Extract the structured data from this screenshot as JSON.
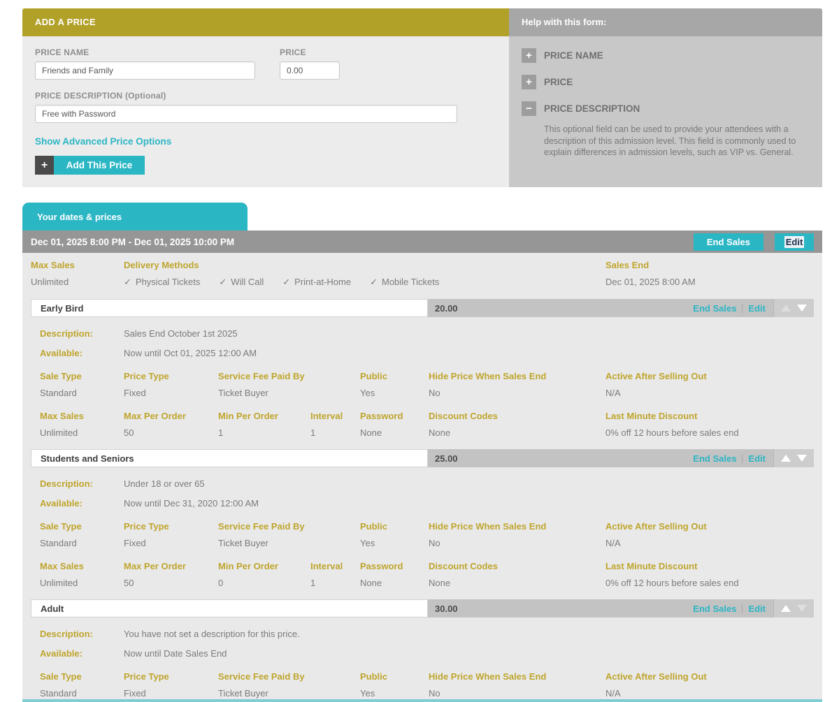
{
  "colors": {
    "accent_teal": "#2bb6c4",
    "accent_gold": "#b2a128",
    "label_gold": "#bfa52d"
  },
  "add_price": {
    "title": "ADD A PRICE",
    "price_name_label": "PRICE NAME",
    "price_name_value": "Friends and Family",
    "price_label": "PRICE",
    "price_value": "0.00",
    "description_label": "PRICE DESCRIPTION (Optional)",
    "description_value": "Free with Password",
    "advanced_link": "Show Advanced Price Options",
    "add_button": "Add This Price",
    "plus_glyph": "+"
  },
  "help": {
    "title": "Help with this form:",
    "items": [
      {
        "label": "PRICE NAME",
        "icon": "+"
      },
      {
        "label": "PRICE",
        "icon": "+"
      },
      {
        "label": "PRICE DESCRIPTION",
        "icon": "−",
        "body": "This optional field can be used to provide your attendees with a description of this admission level. This field is commonly used to explain differences in admission levels, such as VIP vs. General."
      }
    ]
  },
  "dates": {
    "tab_label": "Your dates & prices",
    "date_range": "Dec 01, 2025 8:00 PM - Dec 01, 2025 10:00 PM",
    "end_sales_button": "End Sales",
    "edit_button": "Edit",
    "max_sales_label": "Max Sales",
    "max_sales_value": "Unlimited",
    "delivery_label": "Delivery Methods",
    "check_glyph": "✓",
    "delivery_methods": [
      "Physical Tickets",
      "Will Call",
      "Print-at-Home",
      "Mobile Tickets"
    ],
    "sales_end_label": "Sales End",
    "sales_end_value": "Dec 01, 2025 8:00 AM"
  },
  "labels": {
    "description": "Description:",
    "available": "Available:",
    "sale_type": "Sale Type",
    "price_type": "Price Type",
    "service_fee": "Service Fee Paid By",
    "public": "Public",
    "hide_price": "Hide Price When Sales End",
    "active_after": "Active After Selling Out",
    "max_sales": "Max Sales",
    "max_per_order": "Max Per Order",
    "min_per_order": "Min Per Order",
    "interval": "Interval",
    "password": "Password",
    "discount_codes": "Discount Codes",
    "last_minute": "Last Minute Discount",
    "end_sales": "End Sales",
    "edit": "Edit"
  },
  "prices": [
    {
      "name": "Early Bird",
      "amount": "20.00",
      "description": "Sales End October 1st 2025",
      "available": "Now until Oct 01, 2025 12:00 AM",
      "sale_type": "Standard",
      "price_type": "Fixed",
      "service_fee": "Ticket Buyer",
      "public": "Yes",
      "hide_price": "No",
      "active_after": "N/A",
      "max_sales": "Unlimited",
      "max_per_order": "50",
      "min_per_order": "1",
      "interval": "1",
      "password": "None",
      "discount_codes": "None",
      "last_minute": "0% off 12 hours before sales end"
    },
    {
      "name": "Students and Seniors",
      "amount": "25.00",
      "description": "Under 18 or over 65",
      "available": "Now until Dec 31, 2020 12:00 AM",
      "sale_type": "Standard",
      "price_type": "Fixed",
      "service_fee": "Ticket Buyer",
      "public": "Yes",
      "hide_price": "No",
      "active_after": "N/A",
      "max_sales": "Unlimited",
      "max_per_order": "50",
      "min_per_order": "0",
      "interval": "1",
      "password": "None",
      "discount_codes": "None",
      "last_minute": "0% off 12 hours before sales end"
    },
    {
      "name": "Adult",
      "amount": "30.00",
      "description": "You have not set a description for this price.",
      "available": "Now until Date Sales End",
      "sale_type": "Standard",
      "price_type": "Fixed",
      "service_fee": "Ticket Buyer",
      "public": "Yes",
      "hide_price": "No",
      "active_after": "N/A"
    }
  ]
}
